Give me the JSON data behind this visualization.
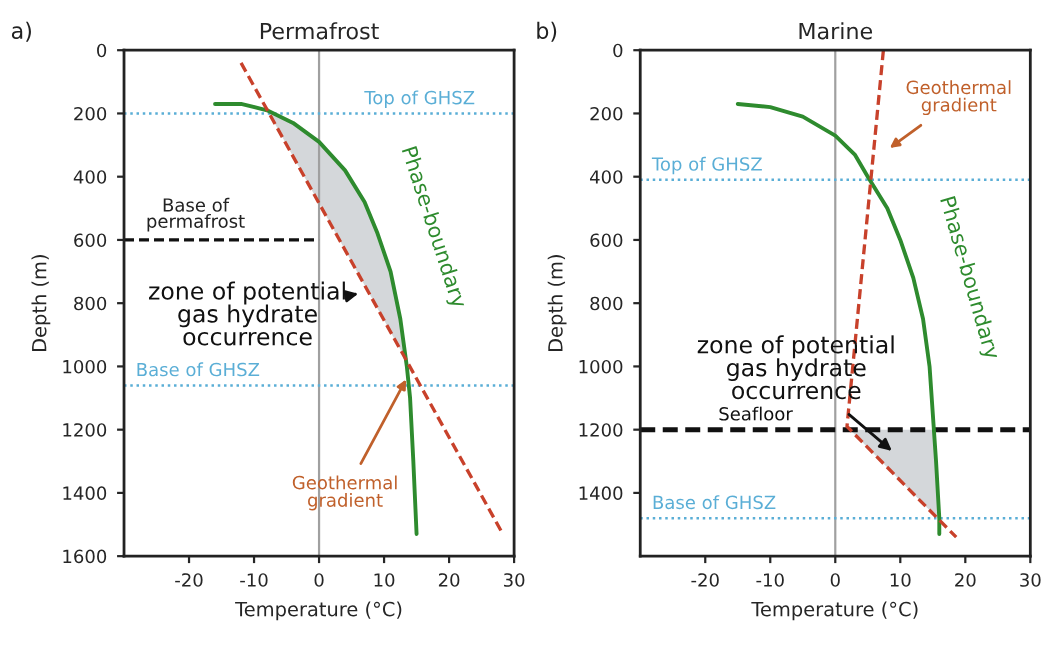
{
  "chart_data": [
    {
      "type": "line",
      "title": "Permafrost",
      "xlabel": "Temperature (°C)",
      "ylabel": "Depth (m)",
      "xlim": [
        -30,
        30
      ],
      "xticks": [
        -20,
        -10,
        0,
        10,
        20,
        30
      ],
      "ylim": [
        1600,
        0
      ],
      "yticks": [
        0,
        200,
        400,
        600,
        800,
        1000,
        1200,
        1400,
        1600
      ],
      "grid": false,
      "series": [
        {
          "name": "Phase-boundary",
          "color": "#2e8b2e",
          "line_style": "solid",
          "x": [
            -16,
            -12,
            -8,
            -4,
            0,
            4,
            7,
            9,
            11,
            12.5,
            13.5,
            14,
            14.5,
            15
          ],
          "values": [
            170,
            170,
            190,
            230,
            290,
            380,
            480,
            580,
            700,
            850,
            1000,
            1100,
            1300,
            1530
          ]
        },
        {
          "color": "#c8412b",
          "line_style": "dashed",
          "x": [
            -12,
            28
          ],
          "values": [
            40,
            1520
          ]
        },
        {
          "color": "#111111",
          "line_style": "dashed",
          "x": [
            -30,
            0
          ],
          "values": [
            600,
            600
          ]
        }
      ],
      "ref_lines": [
        {
          "axis": "x",
          "value": 0,
          "color": "#a0a0a0",
          "line_style": "solid"
        },
        {
          "axis": "y",
          "value": 200,
          "label": "Top of GHSZ",
          "color": "#5aaed6",
          "line_style": "dotted"
        },
        {
          "axis": "y",
          "value": 1060,
          "label": "Base of GHSZ",
          "color": "#5aaed6",
          "line_style": "dotted"
        }
      ],
      "annotations": [
        "a)",
        "Base of\npermafrost",
        "zone of potential\ngas hydrate\noccurrence",
        {
          "text": "Geothermal\ngradient",
          "x": 14.2,
          "y": 1010
        }
      ]
    },
    {
      "type": "line",
      "title": "Marine",
      "xlabel": "Temperature (°C)",
      "ylabel": "Depth (m)",
      "xlim": [
        -30,
        30
      ],
      "xticks": [
        -20,
        -10,
        0,
        10,
        20,
        30
      ],
      "ylim": [
        1600,
        0
      ],
      "yticks": [
        0,
        200,
        400,
        600,
        800,
        1000,
        1200,
        1400
      ],
      "grid": false,
      "series": [
        {
          "name": "Phase-boundary",
          "color": "#2e8b2e",
          "line_style": "solid",
          "x": [
            -15,
            -10,
            -5,
            0,
            3,
            5,
            8,
            10,
            12,
            13.5,
            14.5,
            15,
            15.5,
            16,
            16
          ],
          "values": [
            170,
            180,
            210,
            270,
            330,
            400,
            500,
            600,
            720,
            850,
            1000,
            1150,
            1300,
            1480,
            1530
          ]
        },
        {
          "color": "#c8412b",
          "line_style": "dashed",
          "x": [
            7.4,
            1.8,
            18.6
          ],
          "values": [
            0,
            1190,
            1540
          ]
        }
      ],
      "ref_lines": [
        {
          "axis": "x",
          "value": 0,
          "color": "#a0a0a0",
          "line_style": "solid"
        },
        {
          "axis": "y",
          "value": 410,
          "label": "Top of GHSZ",
          "color": "#5aaed6",
          "line_style": "dotted"
        },
        {
          "axis": "y",
          "value": 1200,
          "label": "Seafloor",
          "color": "#111111",
          "line_style": "dashed"
        },
        {
          "axis": "y",
          "value": 1480,
          "label": "Base of GHSZ",
          "color": "#5aaed6",
          "line_style": "dotted"
        }
      ],
      "annotations": [
        "b)",
        "Geothermal\ngradient",
        "zone of potential\ngas hydrate\noccurrence"
      ]
    }
  ]
}
